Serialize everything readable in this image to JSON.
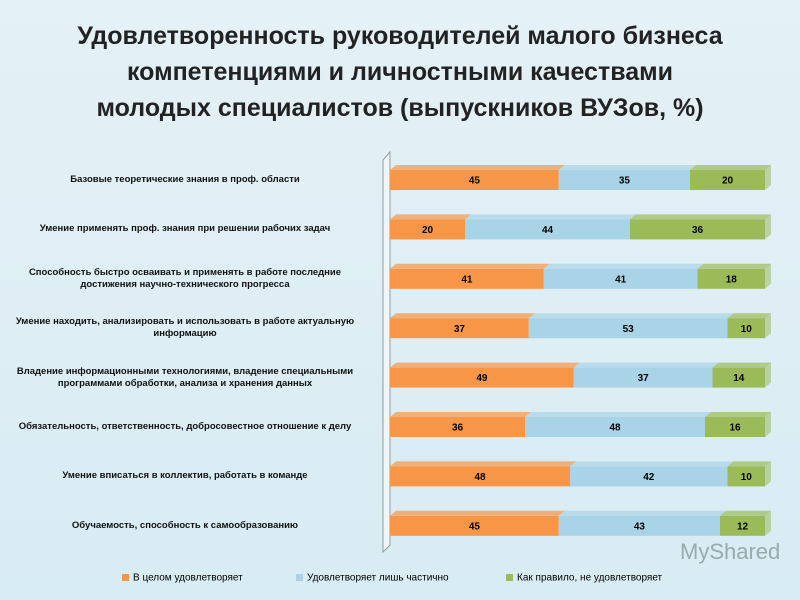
{
  "chart_data": {
    "type": "stacked_barh",
    "title": "Удовлетворенность руководителей малого бизнеса\nкомпетенциями и личностными качествами\nмолодых специалистов (выпускников ВУЗов, %)",
    "watermark": "MyShared",
    "categories": [
      "Базовые теоретические знания в проф. области",
      "Умение применять проф. знания при решении рабочих задач",
      "Способность быстро осваивать и применять в работе последние\nдостижения научно-технического прогресса",
      "Умение находить, анализировать и использовать в работе актуальную\nинформацию",
      "Владение информационными технологиями, владение специальными\nпрограммами обработки, анализа и хранения данных",
      "Обязательность, ответственность, добросовестное отношение к делу",
      "Умение вписаться в коллектив, работать в команде",
      "Обучаемость, способность к самообразованию"
    ],
    "series": [
      {
        "name": "В целом удовлетворяет",
        "color": "#f79646",
        "values": [
          45,
          20,
          41,
          37,
          49,
          36,
          48,
          45
        ]
      },
      {
        "name": "Удовлетворяет лишь частично",
        "color": "#a9d3e6",
        "values": [
          35,
          44,
          41,
          53,
          37,
          48,
          42,
          43
        ]
      },
      {
        "name": "Как правило, не удовлетворяет",
        "color": "#9bbb59",
        "values": [
          20,
          36,
          18,
          10,
          14,
          16,
          10,
          12
        ]
      }
    ],
    "xlim": [
      0,
      100
    ],
    "legend": "bottom"
  }
}
